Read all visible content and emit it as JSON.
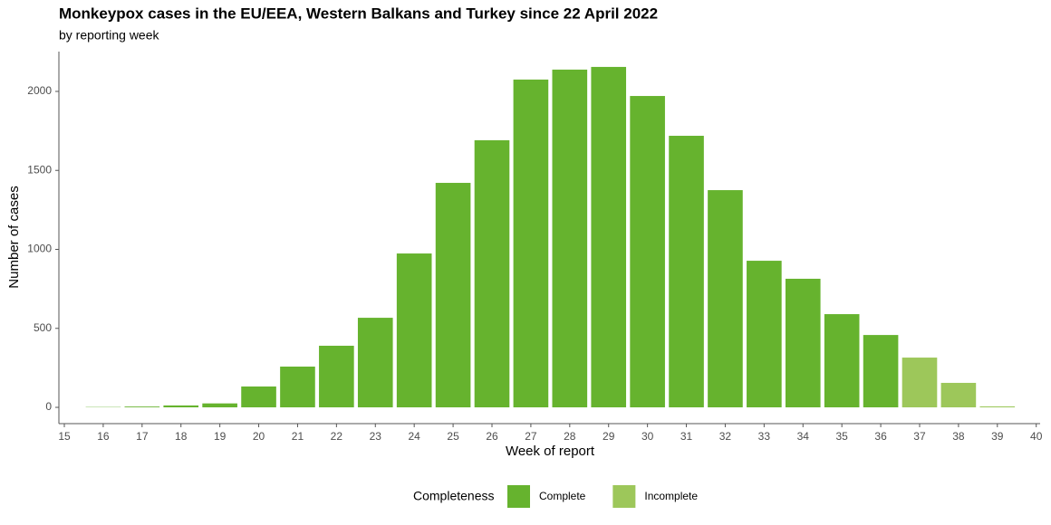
{
  "chart_data": {
    "type": "bar",
    "title": "Monkeypox cases in the EU/EEA, Western Balkans and Turkey since 22 April 2022",
    "subtitle": "by reporting week",
    "x_label": "Week of report",
    "y_label": "Number of cases",
    "legend_title": "Completeness",
    "x": [
      16,
      17,
      18,
      19,
      20,
      21,
      22,
      23,
      24,
      25,
      26,
      27,
      28,
      29,
      30,
      31,
      32,
      33,
      34,
      35,
      36,
      37,
      38,
      39
    ],
    "series": [
      {
        "name": "Complete",
        "color": "#66b32e",
        "values": [
          2,
          5,
          12,
          25,
          132,
          258,
          390,
          567,
          974,
          1421,
          1691,
          2075,
          2138,
          2155,
          1971,
          1719,
          1375,
          928,
          814,
          590,
          458,
          null,
          null,
          null
        ]
      },
      {
        "name": "Incomplete",
        "color": "#9dc75a",
        "values": [
          null,
          null,
          null,
          null,
          null,
          null,
          null,
          null,
          null,
          null,
          null,
          null,
          null,
          null,
          null,
          null,
          null,
          null,
          null,
          null,
          null,
          315,
          155,
          6
        ]
      }
    ],
    "xlim": [
      14.86,
      40.1
    ],
    "xticks": [
      15,
      16,
      17,
      18,
      19,
      20,
      21,
      22,
      23,
      24,
      25,
      26,
      27,
      28,
      29,
      30,
      31,
      32,
      33,
      34,
      35,
      36,
      37,
      38,
      39,
      40
    ],
    "ylim": [
      -103,
      2252
    ],
    "yticks": [
      0,
      500,
      1000,
      1500,
      2000
    ],
    "grid": false,
    "legend_position": "bottom"
  }
}
